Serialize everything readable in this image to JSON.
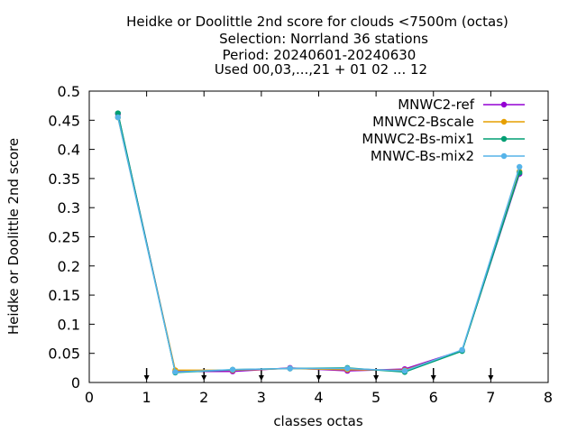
{
  "chart_data": {
    "type": "line",
    "title_lines": [
      "Heidke or Doolittle 2nd score  for clouds <7500m (octas)",
      "Selection: Norrland     36 stations",
      "Period: 20240601-20240630",
      "Used 00,03,...,21 + 01 02 ... 12"
    ],
    "xlabel": "classes octas",
    "ylabel": "Heidke or Doolittle 2nd score",
    "xlim": [
      0,
      8
    ],
    "ylim": [
      0,
      0.5
    ],
    "xticks": [
      "0",
      "1",
      "2",
      "3",
      "4",
      "5",
      "6",
      "7",
      "8"
    ],
    "yticks": [
      "0",
      "0.05",
      "0.1",
      "0.15",
      "0.2",
      "0.25",
      "0.3",
      "0.35",
      "0.4",
      "0.45",
      "0.5"
    ],
    "x": [
      0.5,
      1.5,
      2.5,
      3.5,
      4.5,
      5.5,
      6.5,
      7.5
    ],
    "series": [
      {
        "name": "MNWC2-ref",
        "color": "#9400d3",
        "values": [
          0.461,
          0.019,
          0.019,
          0.025,
          0.02,
          0.023,
          0.055,
          0.358
        ]
      },
      {
        "name": "MNWC2-Bscale",
        "color": "#e69f00",
        "values": [
          0.455,
          0.021,
          0.021,
          0.024,
          0.022,
          0.021,
          0.055,
          0.362
        ]
      },
      {
        "name": "MNWC2-Bs-mix1",
        "color": "#009e73",
        "values": [
          0.462,
          0.017,
          0.022,
          0.024,
          0.025,
          0.018,
          0.054,
          0.36
        ]
      },
      {
        "name": "MNWC-Bs-mix2",
        "color": "#56b4e9",
        "values": [
          0.455,
          0.018,
          0.022,
          0.024,
          0.024,
          0.02,
          0.056,
          0.37
        ]
      }
    ],
    "arrow_markers_x": [
      1,
      2,
      3,
      4,
      5,
      6,
      7
    ],
    "grid": false,
    "legend": "top-right"
  }
}
